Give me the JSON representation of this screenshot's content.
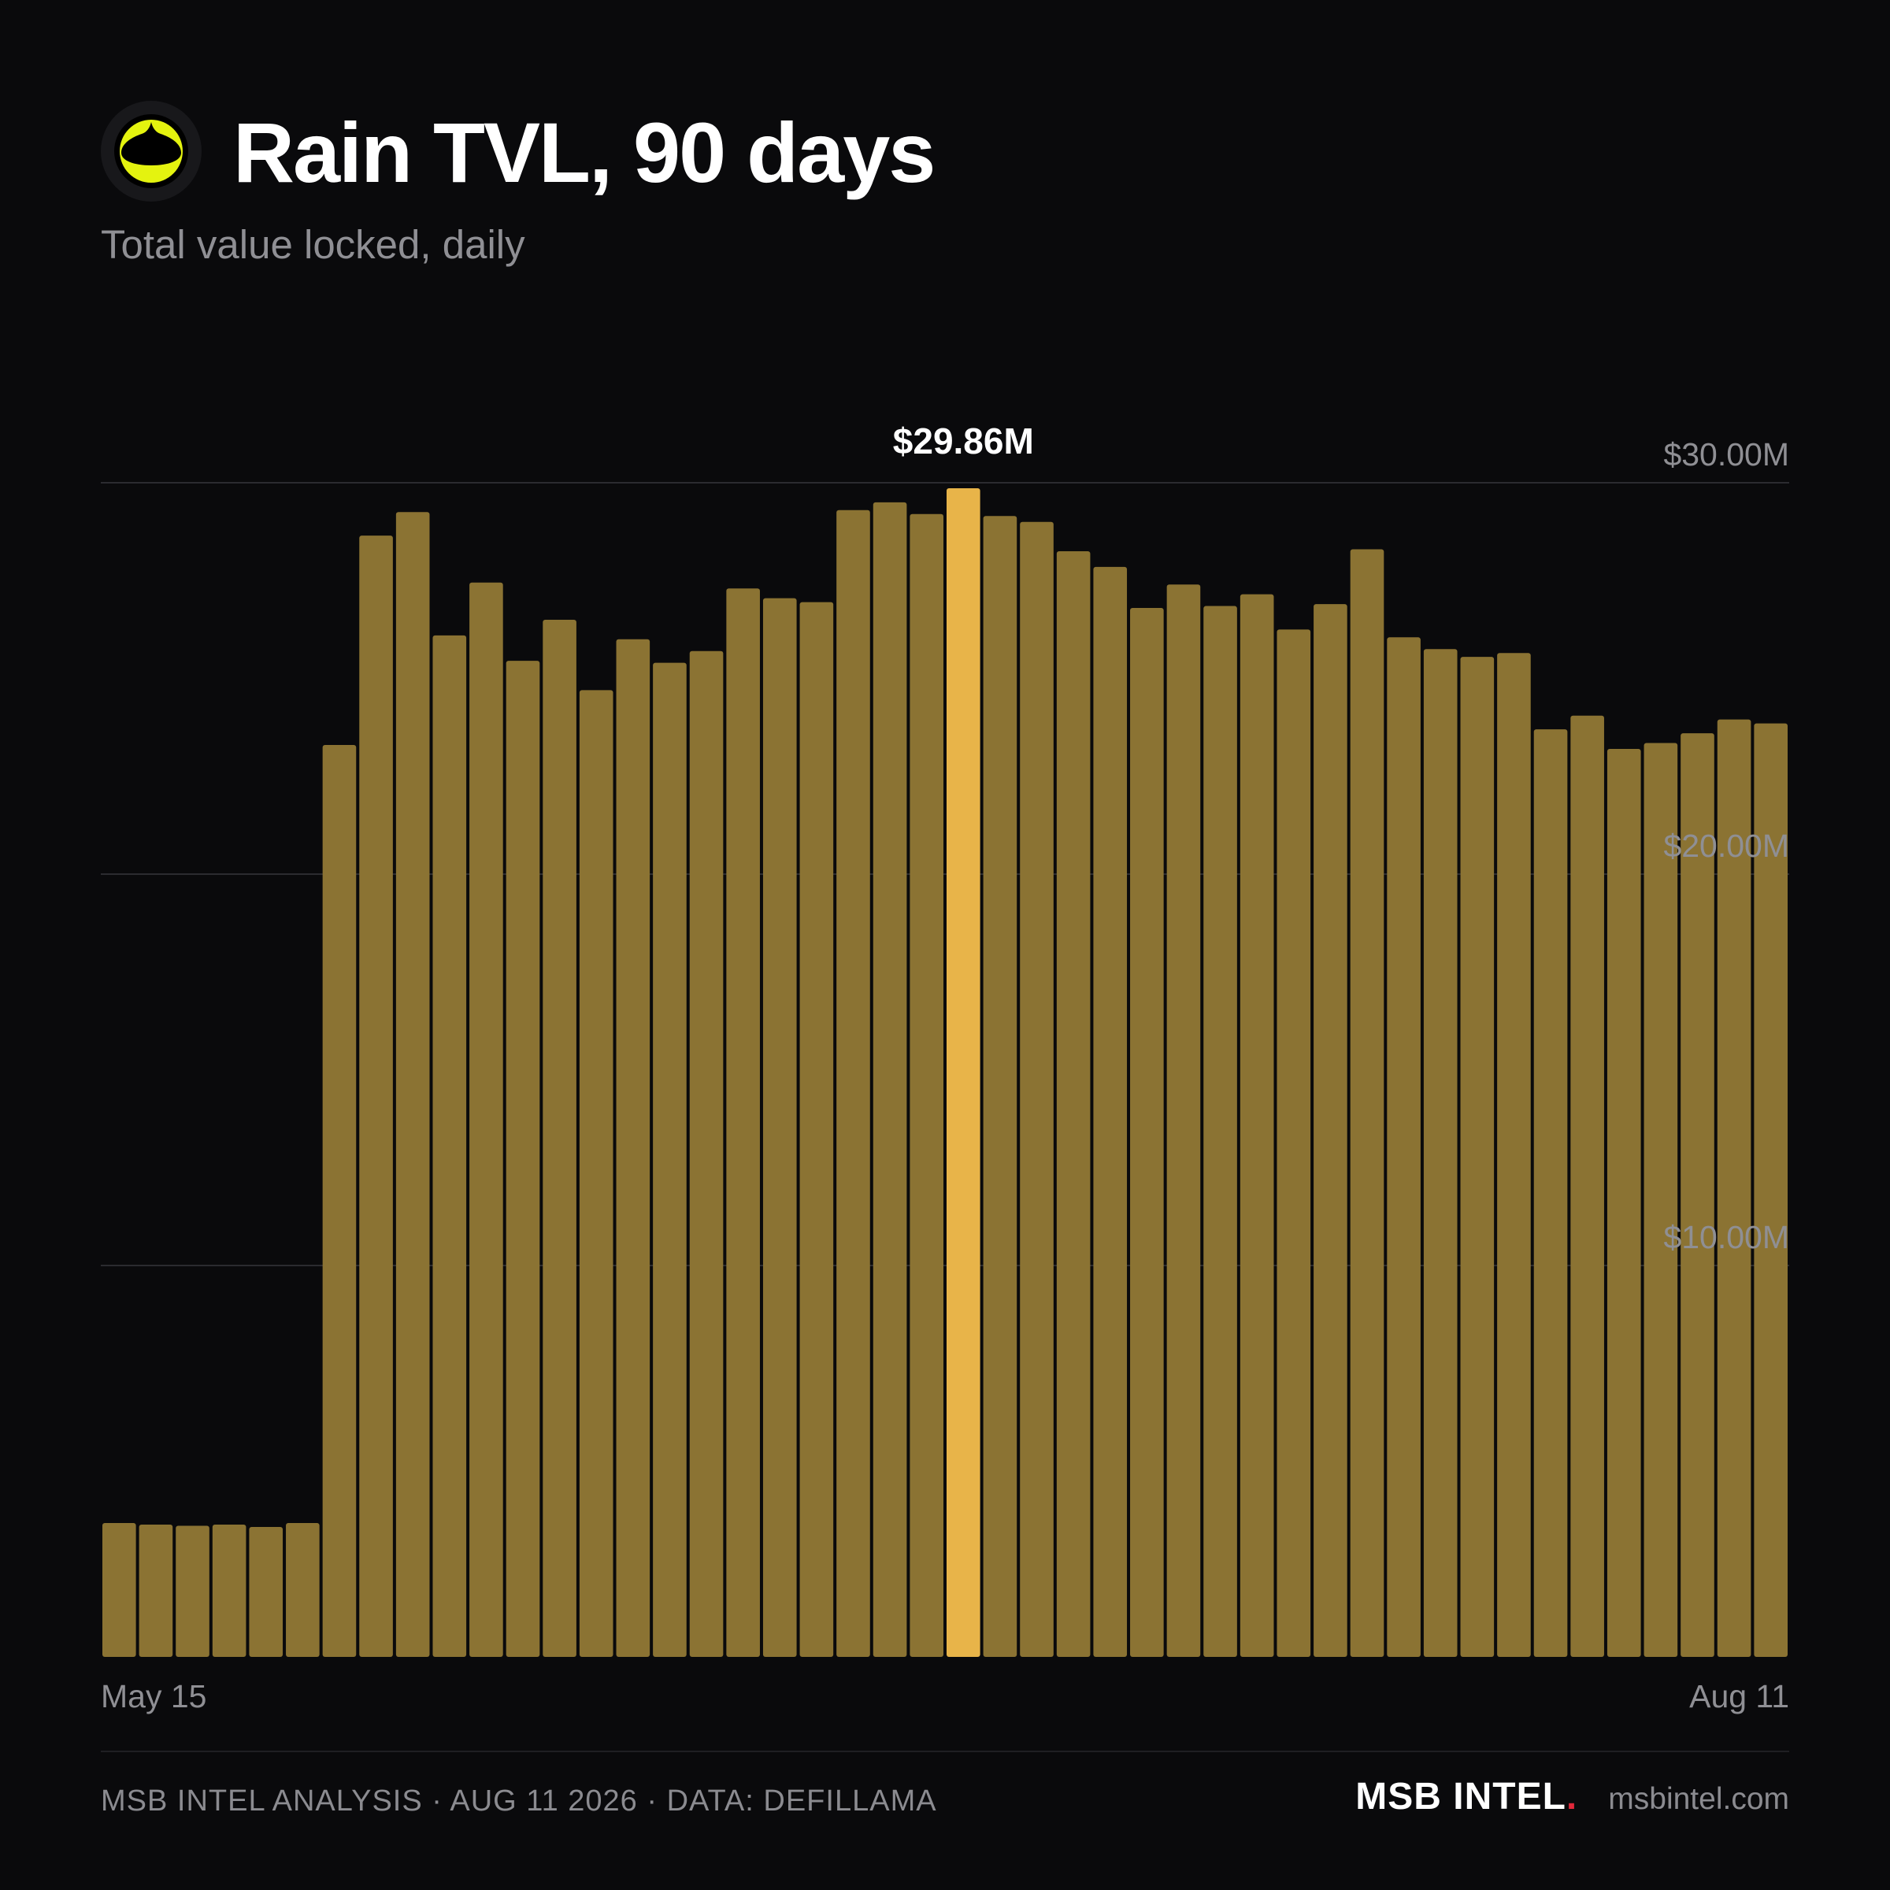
{
  "header": {
    "title": "Rain TVL, 90 days",
    "subtitle": "Total value locked, daily",
    "logo_icon": "rain-logo-icon"
  },
  "colors": {
    "background": "#0a0a0c",
    "bar": "#8b7333",
    "highlight_bar": "#e8b449",
    "logo_accent": "#e4f30f",
    "brand_dot": "#e0283a"
  },
  "chart_data": {
    "type": "bar",
    "title": "Rain TVL, 90 days",
    "subtitle": "Total value locked, daily",
    "x_start_label": "May 15",
    "x_end_label": "Aug 11",
    "y_ticks": [
      {
        "value": 10,
        "label": "$10.00M"
      },
      {
        "value": 20,
        "label": "$20.00M"
      },
      {
        "value": 30,
        "label": "$30.00M"
      }
    ],
    "ylim": [
      0,
      30
    ],
    "ylabel_units": "USD millions",
    "grid": true,
    "values": [
      3.42,
      3.38,
      3.35,
      3.38,
      3.32,
      3.42,
      23.3,
      28.65,
      29.25,
      26.1,
      27.45,
      25.45,
      26.5,
      24.7,
      26.0,
      25.4,
      25.7,
      27.3,
      27.05,
      26.95,
      29.3,
      29.5,
      29.2,
      29.86,
      29.15,
      29.0,
      28.25,
      27.85,
      26.8,
      27.4,
      26.85,
      27.15,
      26.25,
      26.9,
      28.3,
      26.05,
      25.75,
      25.55,
      25.65,
      23.7,
      24.05,
      23.2,
      23.35,
      23.6,
      23.95,
      23.85
    ],
    "highlight": {
      "index": 23,
      "label": "$29.86M"
    }
  },
  "footer": {
    "credit": "MSB INTEL ANALYSIS · AUG 11 2026 · DATA: DEFILLAMA",
    "brand": "MSB INTEL",
    "brand_dot": ".",
    "site": "msbintel.com"
  }
}
